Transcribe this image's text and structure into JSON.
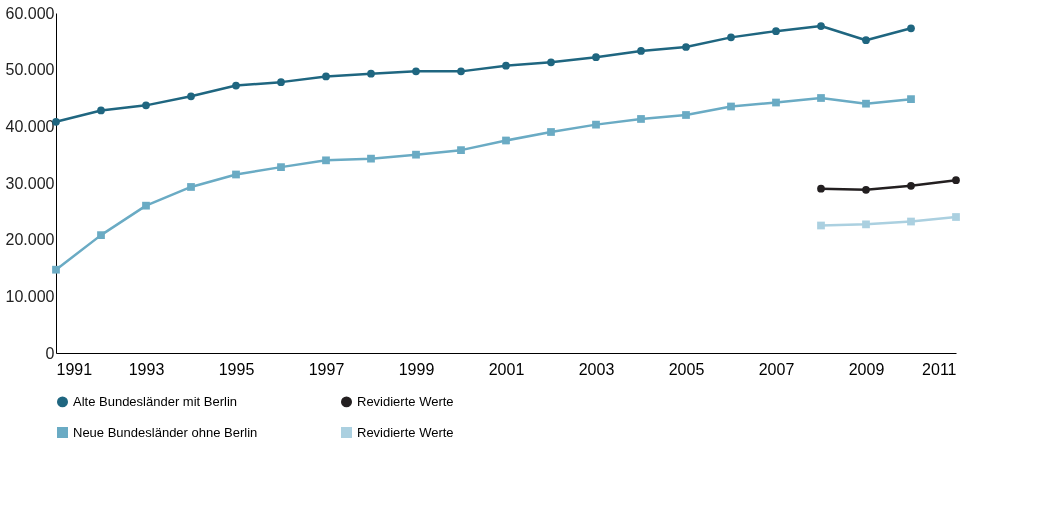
{
  "chart_data": {
    "type": "line",
    "x": [
      1991,
      1992,
      1993,
      1994,
      1995,
      1996,
      1997,
      1998,
      1999,
      2000,
      2001,
      2002,
      2003,
      2004,
      2005,
      2006,
      2007,
      2008,
      2009,
      2010
    ],
    "series": [
      {
        "name": "Alte Bundesländer mit Berlin",
        "color": "#1f6680",
        "marker": "circle",
        "values": [
          40800,
          42800,
          43700,
          45300,
          47200,
          47800,
          48800,
          49300,
          49700,
          49700,
          50700,
          51300,
          52200,
          53300,
          54000,
          55700,
          56800,
          57700,
          55200,
          57300
        ]
      },
      {
        "name": "Neue Bundesländer ohne Berlin",
        "color": "#6aabc4",
        "marker": "square",
        "values": [
          14700,
          20800,
          26000,
          29300,
          31500,
          32800,
          34000,
          34300,
          35000,
          35800,
          37500,
          39000,
          40300,
          41300,
          42000,
          43500,
          44200,
          45000,
          44000,
          44800
        ]
      },
      {
        "name": "Revidierte Werte",
        "color": "#231f20",
        "marker": "circle",
        "x": [
          2008,
          2009,
          2010,
          2011
        ],
        "values": [
          29000,
          28800,
          29500,
          30500
        ]
      },
      {
        "name": "Revidierte Werte",
        "color": "#abd0e0",
        "marker": "square",
        "x": [
          2008,
          2009,
          2010,
          2011
        ],
        "values": [
          22500,
          22700,
          23200,
          24000
        ]
      }
    ],
    "xlim": [
      1991,
      2011
    ],
    "xticks": [
      1991,
      1993,
      1995,
      1997,
      1999,
      2001,
      2003,
      2005,
      2007,
      2009,
      2011
    ],
    "ylim": [
      0,
      60000
    ],
    "yticks": [
      0,
      {
        "value": 10000,
        "label": "10.000"
      },
      {
        "value": 20000,
        "label": "20.000"
      },
      {
        "value": 30000,
        "label": "30.000"
      },
      {
        "value": 40000,
        "label": "40.000"
      },
      {
        "value": 50000,
        "label": "50.000"
      },
      {
        "value": 60000,
        "label": "60.000"
      }
    ],
    "grid": false,
    "legend": "bottom",
    "line_style": "solid"
  }
}
